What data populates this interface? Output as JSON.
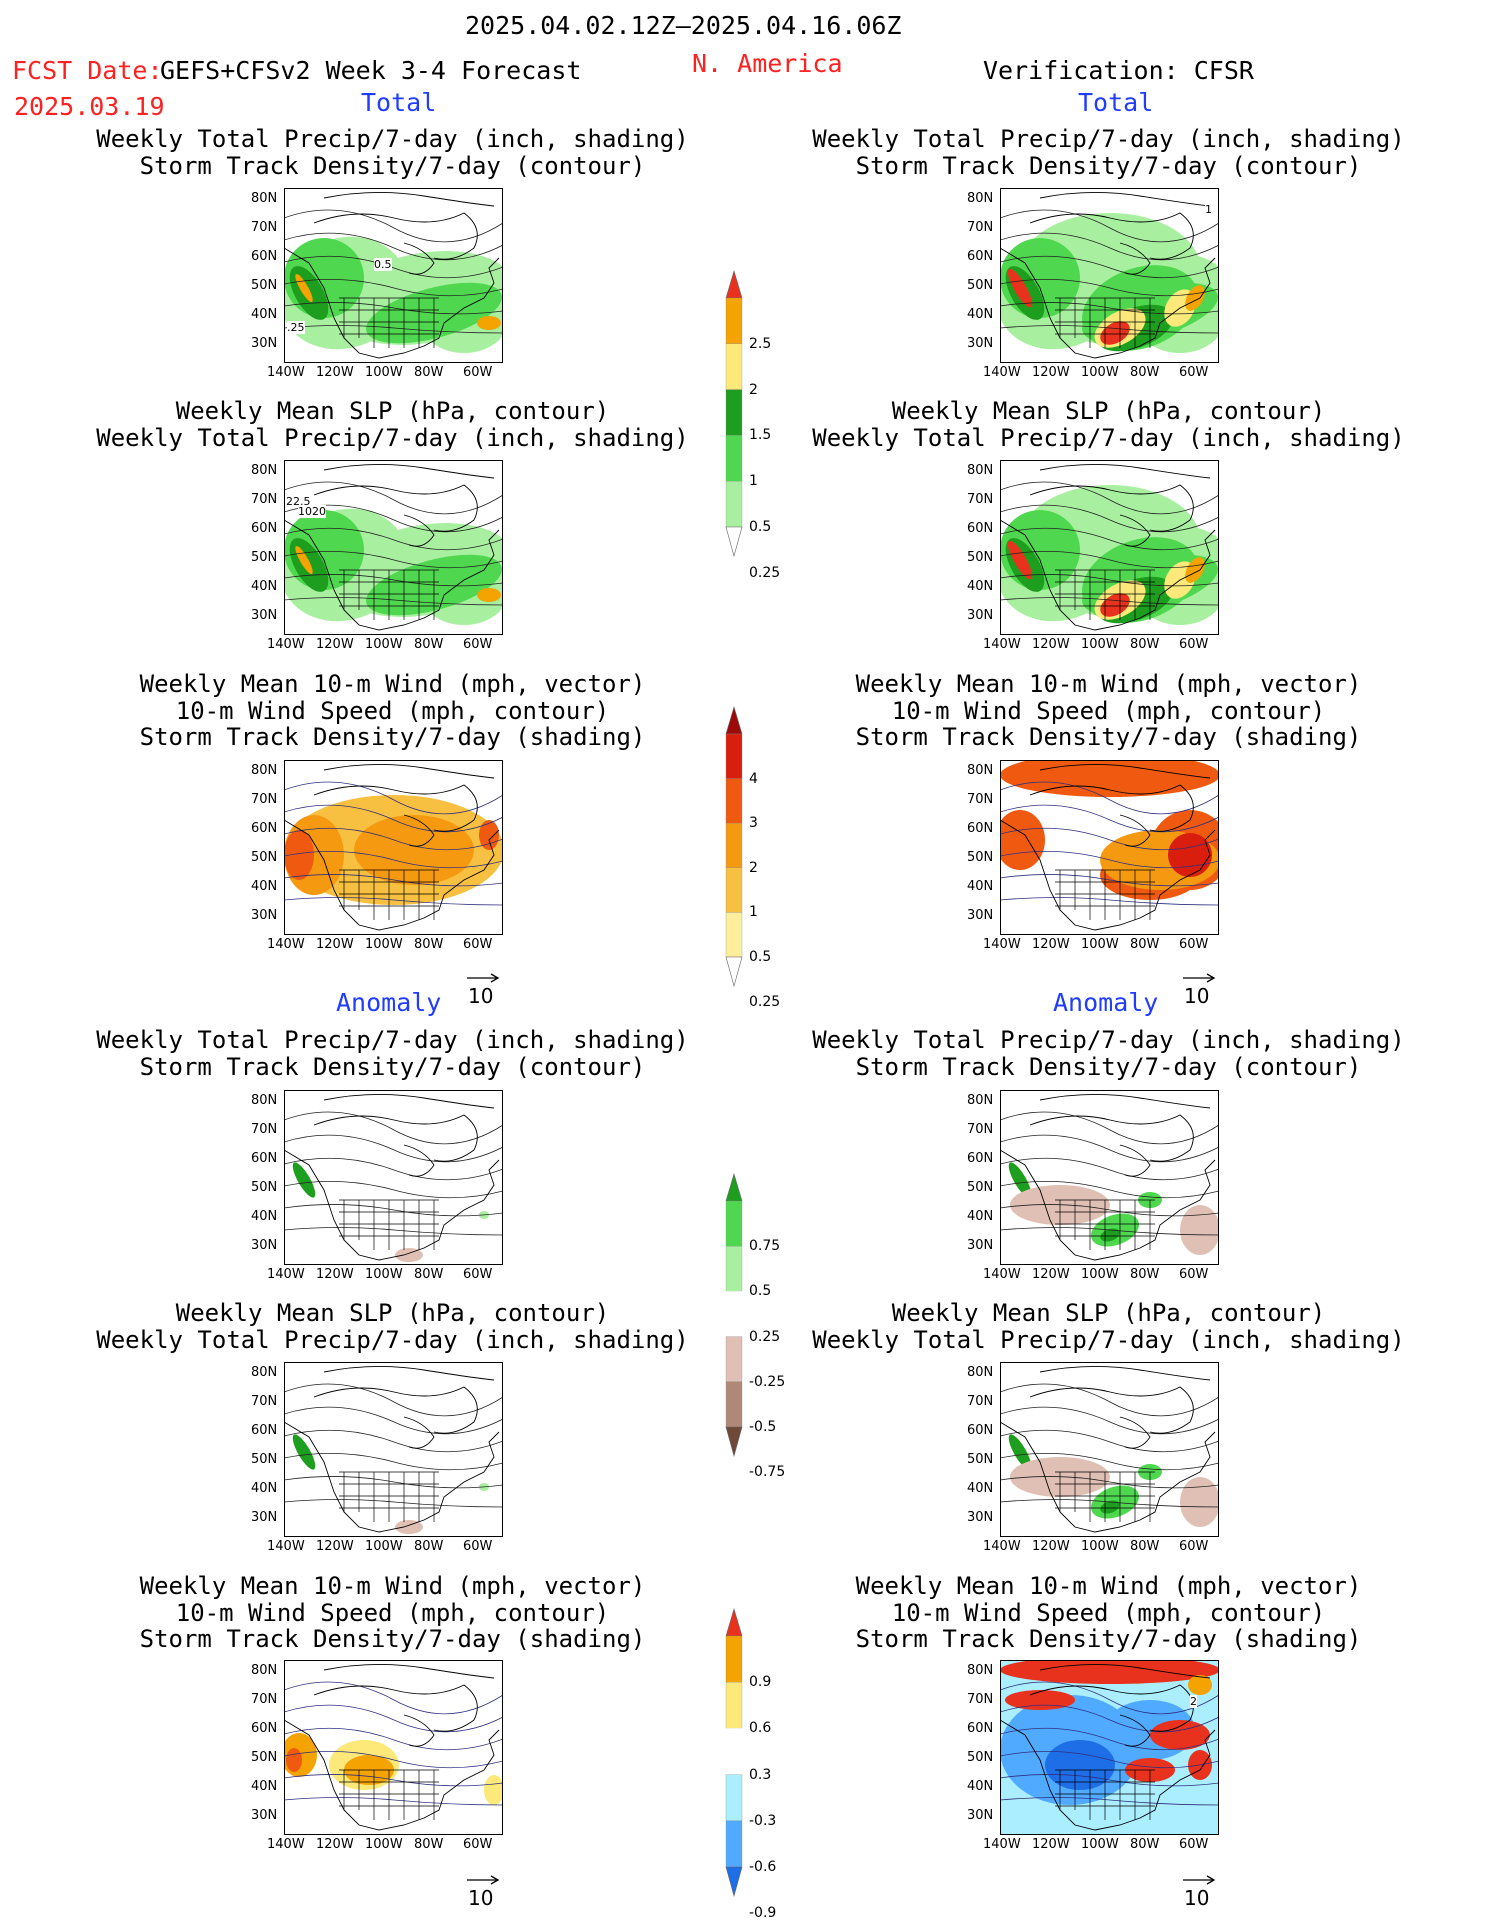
{
  "header": {
    "period": "2025.04.02.12Z–2025.04.16.06Z",
    "fcst_label": "FCST Date:",
    "fcst_model": "GEFS+CFSv2 Week 3-4 Forecast",
    "fcst_date": "2025.03.19",
    "region": "N. America",
    "verification": "Verification: CFSR"
  },
  "sections": {
    "total": "Total",
    "anomaly": "Anomaly"
  },
  "titles": {
    "precip_storm": [
      "Weekly Total Precip/7-day (inch, shading)",
      "Storm Track Density/7-day (contour)"
    ],
    "slp_precip": [
      "Weekly Mean SLP (hPa, contour)",
      "Weekly Total Precip/7-day (inch, shading)"
    ],
    "wind_storm": [
      "Weekly Mean 10-m Wind (mph, vector)",
      "10-m Wind Speed (mph, contour)",
      "Storm Track Density/7-day (shading)"
    ]
  },
  "axes": {
    "lat": [
      "80N",
      "70N",
      "60N",
      "50N",
      "40N",
      "30N"
    ],
    "lon": [
      "140W",
      "120W",
      "100W",
      "80W",
      "60W"
    ]
  },
  "vector_ref": "10",
  "map_labels": {
    "p1": [
      "0.5",
      ".25"
    ],
    "p2": [
      "22.5",
      "1020"
    ],
    "p3": [
      "1"
    ],
    "p4": [
      "2"
    ]
  },
  "colorbars": {
    "precip_total": {
      "labels": [
        "2.5",
        "2",
        "1.5",
        "1",
        "0.5",
        "0.25"
      ],
      "colors": [
        "#e8321e",
        "#f5a300",
        "#fce97a",
        "#1e9e1e",
        "#4fd84f",
        "#a8f0a0"
      ]
    },
    "storm_total": {
      "labels": [
        "4",
        "3",
        "2",
        "1",
        "0.5",
        "0.25"
      ],
      "colors": [
        "#9c0a0a",
        "#d91e0e",
        "#f05a10",
        "#f59a10",
        "#f8c040",
        "#fcee9a"
      ]
    },
    "precip_anom": {
      "labels": [
        "0.75",
        "0.5",
        "0.25",
        "-0.25",
        "-0.5",
        "-0.75"
      ],
      "colors": [
        "#1e9e1e",
        "#4fd84f",
        "#a8f0a0",
        "#ffffff",
        "#e0c0b4",
        "#b08878",
        "#704838"
      ]
    },
    "storm_anom": {
      "labels": [
        "0.9",
        "0.6",
        "0.3",
        "-0.3",
        "-0.6",
        "-0.9"
      ],
      "colors": [
        "#e8321e",
        "#f5a300",
        "#fce97a",
        "#ffffff",
        "#aaeeff",
        "#50aaff",
        "#1e6ee8"
      ]
    }
  }
}
